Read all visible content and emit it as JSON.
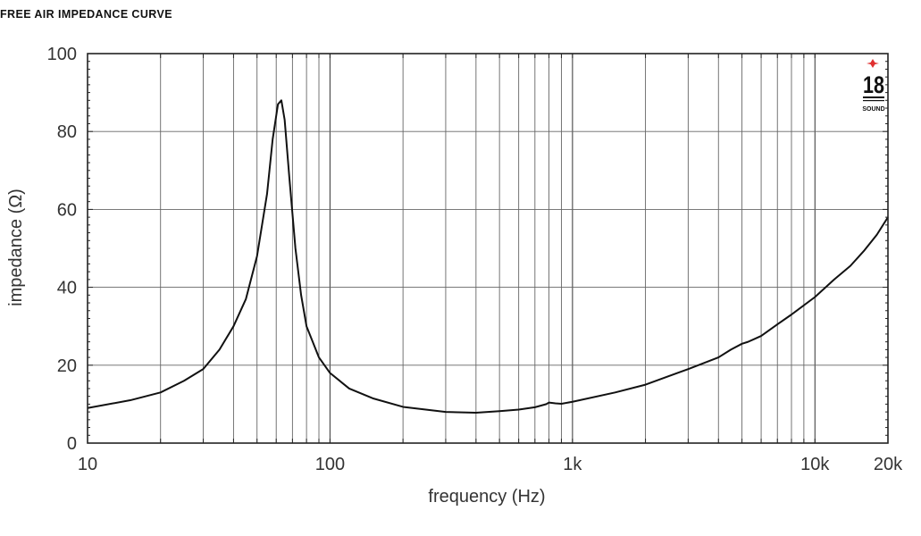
{
  "chart_data": {
    "type": "line",
    "title": "FREE AIR IMPEDANCE CURVE",
    "xlabel": "frequency (Hz)",
    "ylabel": "impedance (Ω)",
    "xscale": "log",
    "xlim": [
      10,
      20000
    ],
    "ylim": [
      0,
      100
    ],
    "grid": true,
    "x_ticks": [
      {
        "value": 10,
        "label": "10"
      },
      {
        "value": 100,
        "label": "100"
      },
      {
        "value": 1000,
        "label": "1k"
      },
      {
        "value": 10000,
        "label": "10k"
      },
      {
        "value": 20000,
        "label": "20k"
      }
    ],
    "y_ticks": [
      {
        "value": 0,
        "label": "0"
      },
      {
        "value": 20,
        "label": "20"
      },
      {
        "value": 40,
        "label": "40"
      },
      {
        "value": 60,
        "label": "60"
      },
      {
        "value": 80,
        "label": "80"
      },
      {
        "value": 100,
        "label": "100"
      }
    ],
    "series": [
      {
        "x": [
          10,
          15,
          20,
          25,
          30,
          35,
          40,
          45,
          50,
          55,
          58,
          61,
          63,
          65,
          68,
          72,
          76,
          80,
          90,
          100,
          120,
          150,
          200,
          300,
          400,
          500,
          600,
          700,
          780,
          800,
          850,
          900,
          1000,
          1500,
          2000,
          3000,
          4000,
          4500,
          5000,
          5300,
          6000,
          7000,
          8000,
          10000,
          12000,
          14000,
          16000,
          18000,
          20000
        ],
        "y": [
          9,
          11,
          13,
          16,
          19,
          24,
          30,
          37,
          48,
          64,
          78,
          87,
          88,
          83,
          68,
          50,
          38,
          30,
          22,
          18,
          14,
          11.5,
          9.3,
          8,
          7.8,
          8.2,
          8.6,
          9.2,
          10,
          10.4,
          10.2,
          10.1,
          10.6,
          13,
          15,
          19,
          22,
          24,
          25.5,
          26,
          27.5,
          30.5,
          33,
          37.5,
          42,
          45.5,
          49.5,
          53.5,
          58
        ]
      }
    ],
    "line_color": "#111111",
    "grid_color": "#555555"
  },
  "logo": {
    "text": "18",
    "subtext": "SOUND",
    "star_color": "#e03030"
  }
}
